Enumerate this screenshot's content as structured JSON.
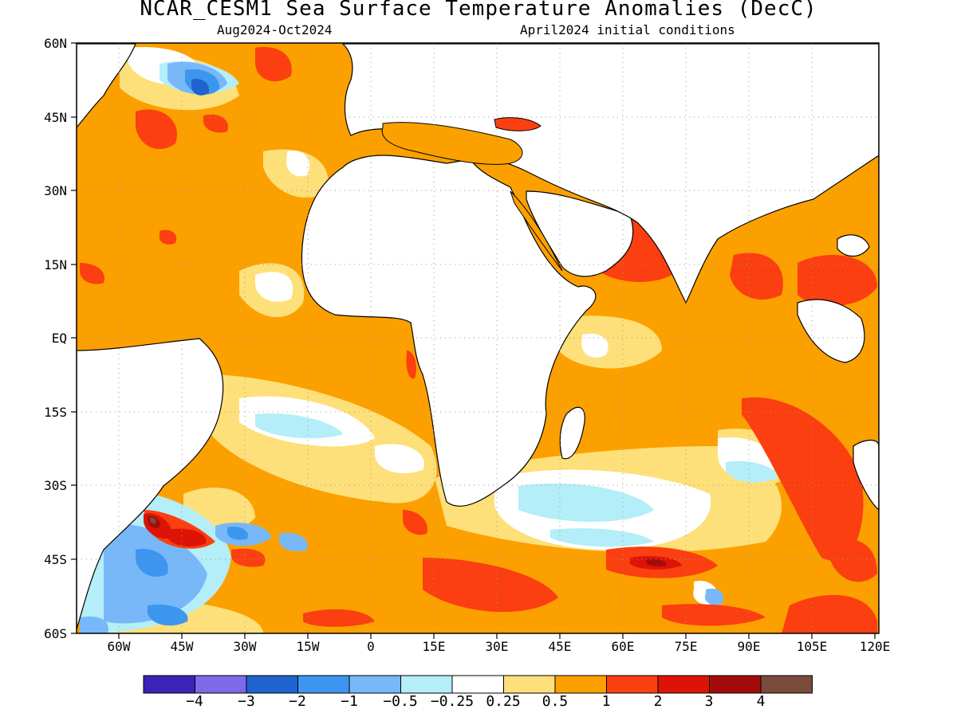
{
  "title": "NCAR_CESM1 Sea Surface Temperature Anomalies (DecC)",
  "subtitle_left": "Aug2024-Oct2024",
  "subtitle_right": "April2024 initial conditions",
  "y_ticks": [
    "60N",
    "45N",
    "30N",
    "15N",
    "EQ",
    "15S",
    "30S",
    "45S",
    "60S"
  ],
  "x_ticks": [
    "60W",
    "45W",
    "30W",
    "15W",
    "0",
    "15E",
    "30E",
    "45E",
    "60E",
    "75E",
    "90E",
    "105E",
    "120E"
  ],
  "map": {
    "lon_range": [
      -70,
      120
    ],
    "lat_range": [
      -60,
      60
    ],
    "grid": "dotted",
    "background_value": "0.5 to 1 (orange)"
  },
  "colorbar": {
    "colors": [
      "#3a23b8",
      "#7c6ae8",
      "#1f63d0",
      "#3c96f0",
      "#78b8f8",
      "#b4eef8",
      "#ffffff",
      "#fde07a",
      "#fca000",
      "#fb3f10",
      "#dd1405",
      "#a40c0c",
      "#7a4a3a"
    ],
    "labels": [
      "−4",
      "−3",
      "−2",
      "−1",
      "−0.5",
      "−0.25",
      "0.25",
      "0.5",
      "1",
      "2",
      "3",
      "4"
    ]
  }
}
